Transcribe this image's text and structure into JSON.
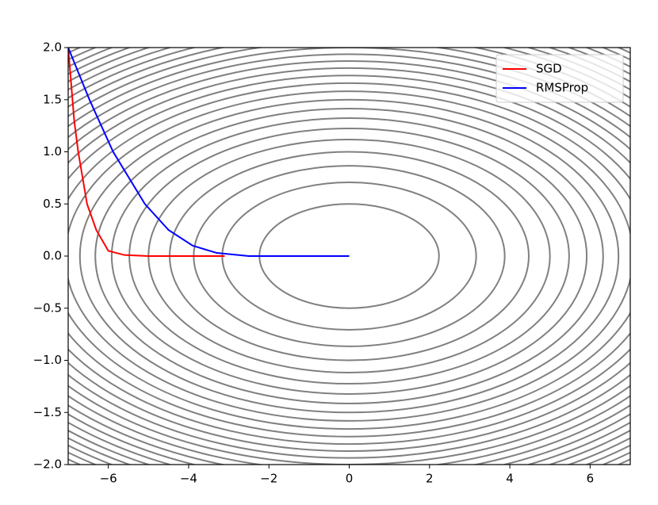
{
  "chart_data": {
    "type": "contour-line",
    "contour": {
      "a": 0.1,
      "b": 2,
      "color": "#808080",
      "levels": [
        0.5,
        1,
        1.5,
        2,
        2.5,
        3,
        3.5,
        4,
        4.5,
        5,
        5.5,
        6,
        6.5,
        7,
        7.5,
        8,
        8.5,
        9,
        9.5,
        10,
        10.5,
        11,
        11.5,
        12,
        12.5,
        13
      ]
    },
    "series": [
      {
        "name": "SGD",
        "color": "#ff0000",
        "x": [
          -7,
          -6.85,
          -6.75,
          -6.53,
          -6.3,
          -6.0,
          -5.6,
          -5.0,
          -4.0,
          -3.1
        ],
        "values": [
          2,
          1.3,
          1.0,
          0.5,
          0.25,
          0.05,
          0.01,
          0,
          0,
          0
        ]
      },
      {
        "name": "RMSProp",
        "color": "#0000ff",
        "x": [
          -7,
          -6.47,
          -5.88,
          -5.09,
          -4.5,
          -3.9,
          -3.3,
          -2.5,
          -1,
          0
        ],
        "values": [
          2,
          1.5,
          1.0,
          0.5,
          0.25,
          0.1,
          0.03,
          0,
          0,
          0
        ]
      }
    ],
    "xlim": [
      -7,
      7
    ],
    "xticks": [
      {
        "value": -6,
        "label": "−6"
      },
      {
        "value": -4,
        "label": "−4"
      },
      {
        "value": -2,
        "label": "−2"
      },
      0,
      2,
      4,
      6
    ],
    "ylim": [
      -2,
      2
    ],
    "yticks": [
      {
        "value": -2,
        "label": "−2.0"
      },
      {
        "value": -1.5,
        "label": "−1.5"
      },
      {
        "value": -1,
        "label": "−1.0"
      },
      {
        "value": -0.5,
        "label": "−0.5"
      },
      {
        "value": 0,
        "label": "0.0"
      },
      0.5,
      {
        "value": 1,
        "label": "1.0"
      },
      1.5,
      {
        "value": 2,
        "label": "2.0"
      }
    ],
    "legend": "upper right"
  }
}
